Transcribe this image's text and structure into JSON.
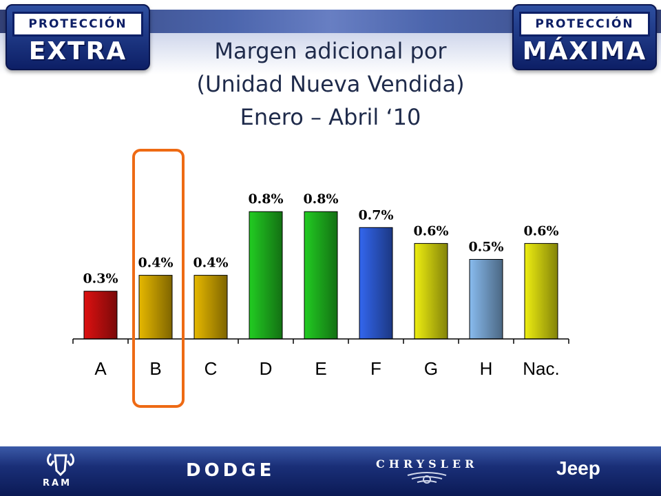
{
  "badges": {
    "left": {
      "top": "PROTECCIÓN",
      "big": "EXTRA"
    },
    "right": {
      "top": "PROTECCIÓN",
      "big": "MÁXIMA"
    }
  },
  "title": {
    "line1": "Margen adicional por",
    "line2": "(Unidad Nueva Vendida)",
    "line3": "Enero – Abril ‘10"
  },
  "chart_data": {
    "type": "bar",
    "title": "Margen adicional por (Unidad Nueva Vendida) Enero – Abril ‘10",
    "categories": [
      "A",
      "B",
      "C",
      "D",
      "E",
      "F",
      "G",
      "H",
      "Nac."
    ],
    "values": [
      0.3,
      0.4,
      0.4,
      0.8,
      0.8,
      0.7,
      0.6,
      0.5,
      0.6
    ],
    "value_labels": [
      "0.3%",
      "0.4%",
      "0.4%",
      "0.8%",
      "0.8%",
      "0.7%",
      "0.6%",
      "0.5%",
      "0.6%"
    ],
    "bar_heights": [
      0.3,
      0.4,
      0.4,
      0.8,
      0.8,
      0.7,
      0.6,
      0.5,
      0.6
    ],
    "colors": [
      "#dd1111",
      "#e6b800",
      "#e6b800",
      "#22cc22",
      "#22cc22",
      "#3366ee",
      "#eeee11",
      "#88bbee",
      "#eeee11"
    ],
    "highlighted_category": "B",
    "highlight_color": "#ee6a14",
    "grid": false,
    "legend": "none"
  },
  "footer": {
    "brands": [
      "RAM",
      "DODGE",
      "CHRYSLER",
      "Jeep"
    ]
  }
}
